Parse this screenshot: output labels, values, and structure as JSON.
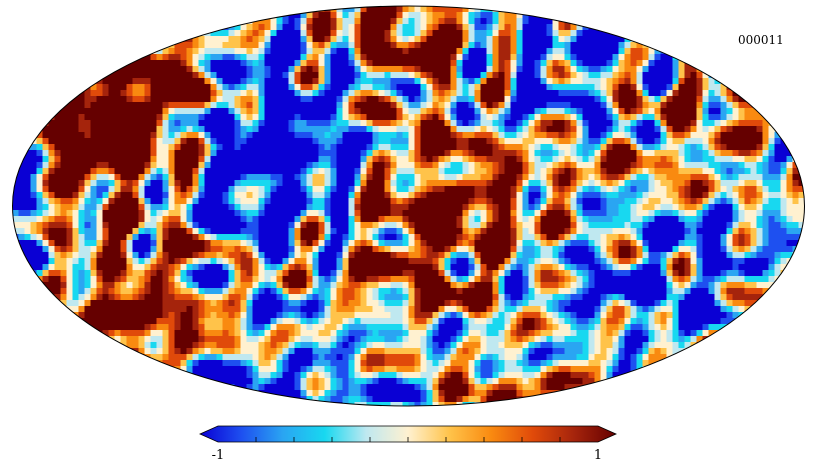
{
  "map": {
    "id_label": "000011",
    "projection": "mollweide",
    "colormap": "planck"
  },
  "colorbar": {
    "min_label": "-1",
    "max_label": "1",
    "min_value": -1,
    "max_value": 1,
    "tick_count": 10,
    "colors": [
      "#0a00d4",
      "#1e50f0",
      "#2aa5f2",
      "#18d8f0",
      "#bfe8f0",
      "#fff1d0",
      "#ffc34a",
      "#f98a10",
      "#e04a0a",
      "#a5240c",
      "#650000"
    ]
  }
}
